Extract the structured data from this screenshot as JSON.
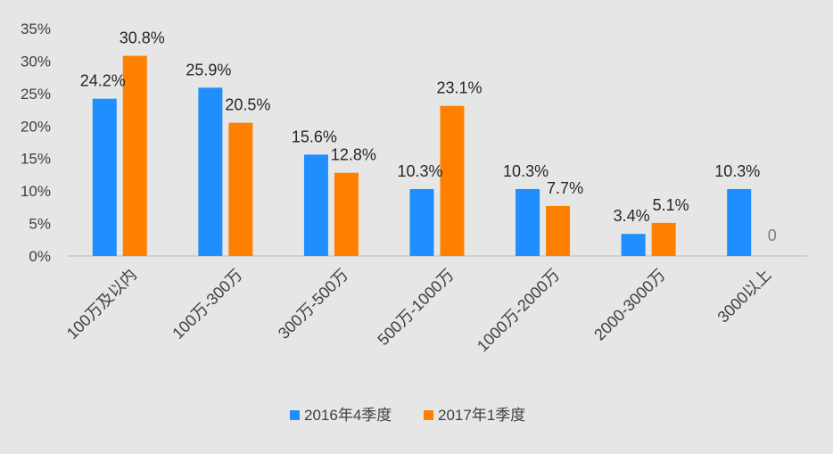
{
  "chart_data": {
    "type": "bar",
    "title": "",
    "xlabel": "",
    "ylabel": "",
    "categories": [
      "100万及以内",
      "100万-300万",
      "300万-500万",
      "500万-1000万",
      "1000万-2000万",
      "2000-3000万",
      "3000以上"
    ],
    "series": [
      {
        "name": "2016年4季度",
        "color": "#1f8fff",
        "values": [
          24.2,
          25.9,
          15.6,
          10.3,
          10.3,
          3.4,
          10.3
        ],
        "labels": [
          "24.2%",
          "25.9%",
          "15.6%",
          "10.3%",
          "10.3%",
          "3.4%",
          "10.3%"
        ]
      },
      {
        "name": "2017年1季度",
        "color": "#ff7f00",
        "values": [
          30.8,
          20.5,
          12.8,
          23.1,
          7.7,
          5.1,
          0
        ],
        "labels": [
          "30.8%",
          "20.5%",
          "12.8%",
          "23.1%",
          "7.7%",
          "5.1%",
          "0"
        ]
      }
    ],
    "ylim": [
      0,
      35
    ],
    "yticks": [
      0,
      5,
      10,
      15,
      20,
      25,
      30,
      35
    ],
    "ytick_labels": [
      "0%",
      "5%",
      "10%",
      "15%",
      "20%",
      "25%",
      "30%",
      "35%"
    ],
    "grid": false,
    "legend_position": "bottom"
  }
}
